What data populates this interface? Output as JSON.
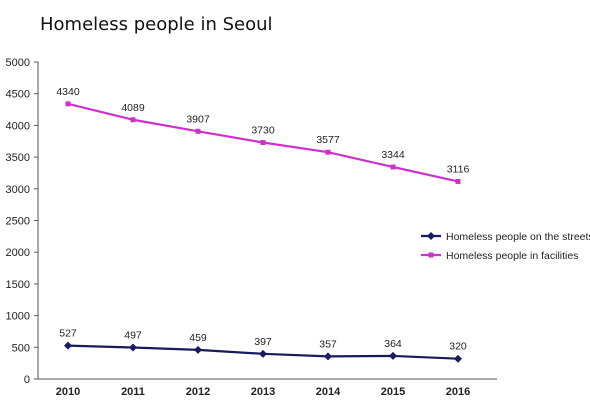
{
  "chart_data": {
    "type": "line",
    "title": "Homeless people in Seoul",
    "xlabel": "",
    "ylabel": "",
    "categories": [
      "2010",
      "2011",
      "2012",
      "2013",
      "2014",
      "2015",
      "2016"
    ],
    "ylim": [
      0,
      5000
    ],
    "yticks": [
      0,
      500,
      1000,
      1500,
      2000,
      2500,
      3000,
      3500,
      4000,
      4500,
      5000
    ],
    "grid": false,
    "legend": "right",
    "series": [
      {
        "name": "Homeless people on the streets",
        "values": [
          527,
          497,
          459,
          397,
          357,
          364,
          320
        ],
        "color": "#1a1a5e",
        "marker": "diamond"
      },
      {
        "name": "Homeless people in facilities",
        "values": [
          4340,
          4089,
          3907,
          3730,
          3577,
          3344,
          3116
        ],
        "color": "#cc33cc",
        "marker": "square"
      }
    ]
  }
}
